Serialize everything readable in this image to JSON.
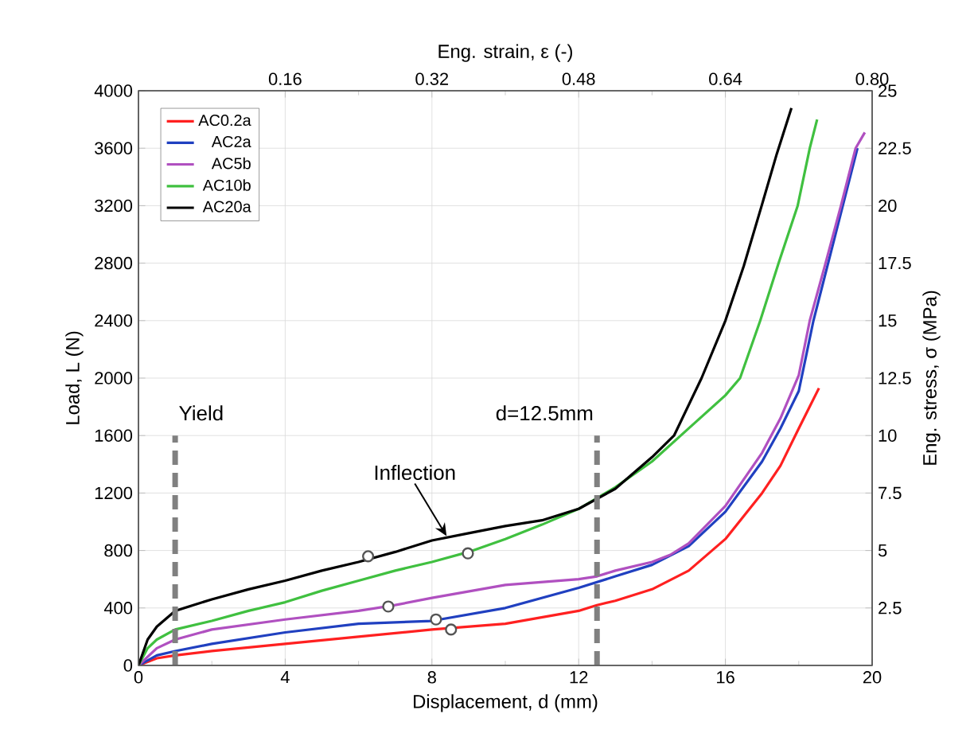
{
  "chart_data": {
    "type": "line",
    "xlabel": "Displacement, d (mm)",
    "ylabel": "Load, L (N)",
    "x2label": "Eng. strain, ε (-)",
    "y2label": "Eng. stress, σ (MPa)",
    "xlim": [
      0,
      20
    ],
    "xticks": [
      0,
      4,
      8,
      12,
      16,
      20
    ],
    "ylim": [
      0,
      4000
    ],
    "yticks": [
      0,
      400,
      800,
      1200,
      1600,
      2000,
      2400,
      2800,
      3200,
      3600,
      4000
    ],
    "x2lim": [
      0,
      0.8
    ],
    "x2ticks": [
      0.16,
      0.32,
      0.48,
      0.64,
      {
        "value": 0.8,
        "label": "0.80"
      }
    ],
    "y2lim": [
      0,
      25
    ],
    "y2ticks": [
      2.5,
      5,
      7.5,
      10,
      12.5,
      15,
      17.5,
      20,
      22.5,
      25
    ],
    "grid": true,
    "legend": "top left",
    "ref_lines": [
      {
        "axis": "x",
        "value": 1,
        "label": "Yield",
        "color": "#808080",
        "line_style": "dashed"
      },
      {
        "axis": "x",
        "value": 12.5,
        "label": "d=12.5mm",
        "color": "#808080",
        "line_style": "dashed"
      }
    ],
    "annotations": [
      {
        "text": "Inflection",
        "x": 8.4,
        "y": 900
      }
    ],
    "series": [
      {
        "name": "AC0.2a",
        "color": "#ff2020",
        "x": [
          0,
          0.5,
          1,
          2,
          4,
          6,
          8,
          10,
          12,
          12.5,
          13,
          14,
          15,
          16,
          17,
          17.5,
          18,
          18.55
        ],
        "values": [
          0,
          50,
          70,
          100,
          150,
          200,
          250,
          290,
          380,
          420,
          450,
          530,
          660,
          880,
          1200,
          1390,
          1650,
          1930
        ]
      },
      {
        "name": "AC2a",
        "color": "#2040c0",
        "x": [
          0,
          0.5,
          1,
          2,
          4,
          6,
          8,
          10,
          12,
          13,
          14,
          15,
          16,
          17,
          17.5,
          18,
          18.4,
          18.8,
          19.2,
          19.6
        ],
        "values": [
          0,
          70,
          100,
          150,
          230,
          290,
          310,
          400,
          540,
          620,
          700,
          830,
          1070,
          1420,
          1650,
          1910,
          2400,
          2800,
          3200,
          3600
        ]
      },
      {
        "name": "AC5b",
        "color": "#b050c0",
        "x": [
          0,
          0.5,
          1,
          2,
          4,
          6,
          7,
          8,
          10,
          12,
          12.5,
          13,
          14,
          14.5,
          15,
          16,
          17,
          17.5,
          18,
          18.3,
          18.73,
          19.15,
          19.55,
          19.8
        ],
        "values": [
          0,
          120,
          180,
          250,
          320,
          380,
          420,
          470,
          560,
          600,
          620,
          660,
          720,
          770,
          850,
          1110,
          1480,
          1720,
          2020,
          2400,
          2800,
          3200,
          3600,
          3710
        ]
      },
      {
        "name": "AC10b",
        "color": "#40c040",
        "x": [
          0,
          0.25,
          0.5,
          1,
          2,
          3,
          4,
          5,
          6,
          7,
          8,
          9,
          10,
          11,
          12,
          13,
          14,
          15,
          16,
          16.4,
          16.95,
          17.45,
          17.97,
          18.3,
          18.5
        ],
        "values": [
          0,
          120,
          180,
          250,
          310,
          380,
          440,
          520,
          590,
          660,
          720,
          790,
          880,
          980,
          1090,
          1240,
          1420,
          1650,
          1880,
          2000,
          2400,
          2800,
          3200,
          3600,
          3800
        ]
      },
      {
        "name": "AC20a",
        "color": "#000000",
        "x": [
          0,
          0.25,
          0.5,
          1,
          2,
          3,
          4,
          5,
          6,
          7,
          8,
          9,
          10,
          11,
          12,
          13,
          14,
          14.6,
          15.35,
          16,
          16.5,
          17,
          17.4,
          17.8
        ],
        "values": [
          0,
          180,
          270,
          380,
          460,
          530,
          590,
          660,
          720,
          790,
          870,
          920,
          970,
          1010,
          1090,
          1230,
          1450,
          1600,
          2000,
          2400,
          2780,
          3210,
          3560,
          3880
        ]
      },
      {
        "type": "scatter",
        "marker": "circle",
        "color": "#555555",
        "x": [
          6.26,
          8.98,
          6.81,
          8.11,
          8.52
        ],
        "values": [
          760,
          780,
          410,
          320,
          250
        ]
      }
    ]
  }
}
